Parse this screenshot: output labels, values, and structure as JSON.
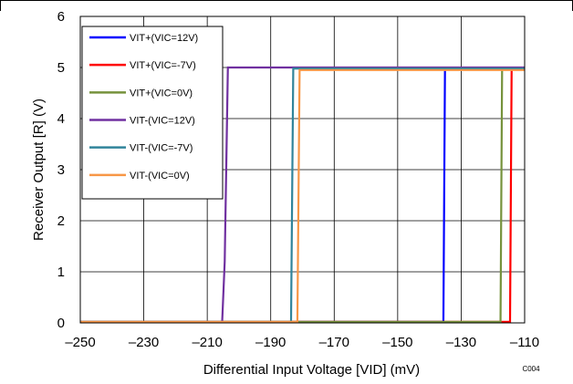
{
  "chart_data": {
    "type": "line",
    "title": "",
    "xlabel": "Differential Input Voltage [VID] (mV)",
    "ylabel": "Receiver Output [R] (V)",
    "xlim": [
      -250,
      -110
    ],
    "ylim": [
      0,
      6
    ],
    "x_ticks": [
      "–250",
      "–230",
      "–210",
      "–190",
      "–170",
      "–150",
      "–130",
      "–110"
    ],
    "y_ticks": [
      "0",
      "1",
      "2",
      "3",
      "4",
      "5",
      "6"
    ],
    "grid": true,
    "legend_position": "top-left",
    "chart_id": "C004",
    "series": [
      {
        "name": "VIT+(VIC=12V)",
        "color": "#0000ff",
        "x": [
          -250,
          -135.6,
          -135.1,
          -110
        ],
        "y": [
          0.02,
          0.02,
          4.98,
          4.98
        ]
      },
      {
        "name": "VIT+(VIC=-7V)",
        "color": "#ff0000",
        "x": [
          -250,
          -114.6,
          -114.1,
          -110
        ],
        "y": [
          0.02,
          0.02,
          4.98,
          4.98
        ]
      },
      {
        "name": "VIT+(VIC=0V)",
        "color": "#76923c",
        "x": [
          -250,
          -117.6,
          -117.1,
          -110
        ],
        "y": [
          0.02,
          0.02,
          4.98,
          4.98
        ]
      },
      {
        "name": "VIT-(VIC=12V)",
        "color": "#7030a0",
        "x": [
          -250,
          -205.3,
          -204.5,
          -203.5,
          -110
        ],
        "y": [
          0.02,
          0.02,
          1.2,
          5.0,
          5.0
        ]
      },
      {
        "name": "VIT-(VIC=-7V)",
        "color": "#31849b",
        "x": [
          -250,
          -183.6,
          -182.9,
          -110
        ],
        "y": [
          0.02,
          0.02,
          4.98,
          4.98
        ]
      },
      {
        "name": "VIT-(VIC=0V)",
        "color": "#f79646",
        "x": [
          -250,
          -181.6,
          -180.9,
          -110
        ],
        "y": [
          0.02,
          0.02,
          4.95,
          4.95
        ]
      }
    ]
  }
}
